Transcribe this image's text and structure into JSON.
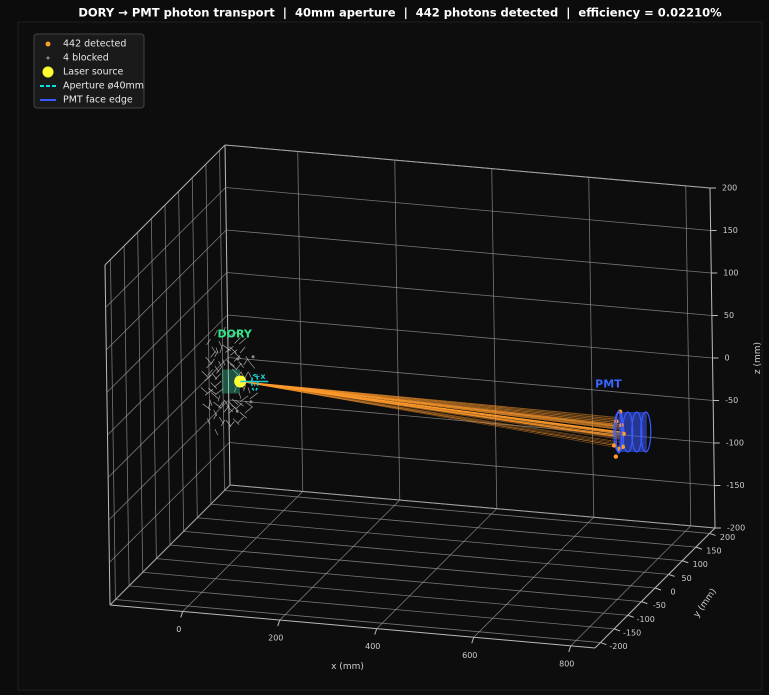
{
  "chart_data": {
    "type": "scatter3d",
    "title": "DORY → PMT photon transport  |  40mm aperture  |  442 photons detected  |  efficiency = 0.02210%",
    "xlabel": "x (mm)",
    "ylabel": "y (mm)",
    "zlabel": "z (mm)",
    "xlim": [
      -150,
      850
    ],
    "ylim": [
      -220,
      220
    ],
    "zlim": [
      -200,
      200
    ],
    "xticks": [
      0,
      200,
      400,
      600,
      800
    ],
    "yticks": [
      -200,
      -150,
      -100,
      -50,
      0,
      50,
      100,
      150,
      200
    ],
    "zticks": [
      -200,
      -150,
      -100,
      -50,
      0,
      50,
      100,
      150,
      200
    ],
    "grid": true,
    "legend": "upper left",
    "annotations": [
      {
        "text": "DORY",
        "color": "#2ee88a",
        "x": -10,
        "y": 0,
        "z": 55
      },
      {
        "text": "PMT",
        "color": "#3a66ff",
        "x": 760,
        "y": 0,
        "z": 35
      },
      {
        "text": "+x",
        "color": "#22cccc",
        "x": 40,
        "y": 0,
        "z": 8
      }
    ],
    "series": [
      {
        "name": "442 detected",
        "color": "#ff9a2e",
        "marker": "dot",
        "x": [
          780,
          780,
          780,
          780,
          780,
          780,
          780,
          780
        ],
        "y": [
          -18,
          -8,
          0,
          10,
          18,
          6,
          -12,
          14
        ],
        "z": [
          -30,
          -5,
          -40,
          -15,
          -28,
          2,
          -45,
          -42
        ]
      },
      {
        "name": "4 blocked",
        "color": "#8a8a8a",
        "marker": "small",
        "x": [
          10,
          10,
          10,
          10
        ],
        "y": [
          30,
          -25,
          -30,
          20
        ],
        "z": [
          20,
          35,
          -25,
          -30
        ]
      },
      {
        "name": "Laser source",
        "color": "#ffff33",
        "marker": "big",
        "x": [
          0
        ],
        "y": [
          0
        ],
        "z": [
          0
        ]
      },
      {
        "name": "Aperture ø40mm",
        "color": "#00e5e5",
        "marker": "line",
        "linestyle": "dashed",
        "x": [
          30
        ],
        "y": [
          0
        ],
        "z": [
          0
        ]
      },
      {
        "name": "PMT face edge",
        "color": "#3a5bff",
        "marker": "line",
        "linestyle": "solid",
        "x": [
          780
        ],
        "y": [
          0
        ],
        "z": [
          -20
        ]
      }
    ]
  }
}
